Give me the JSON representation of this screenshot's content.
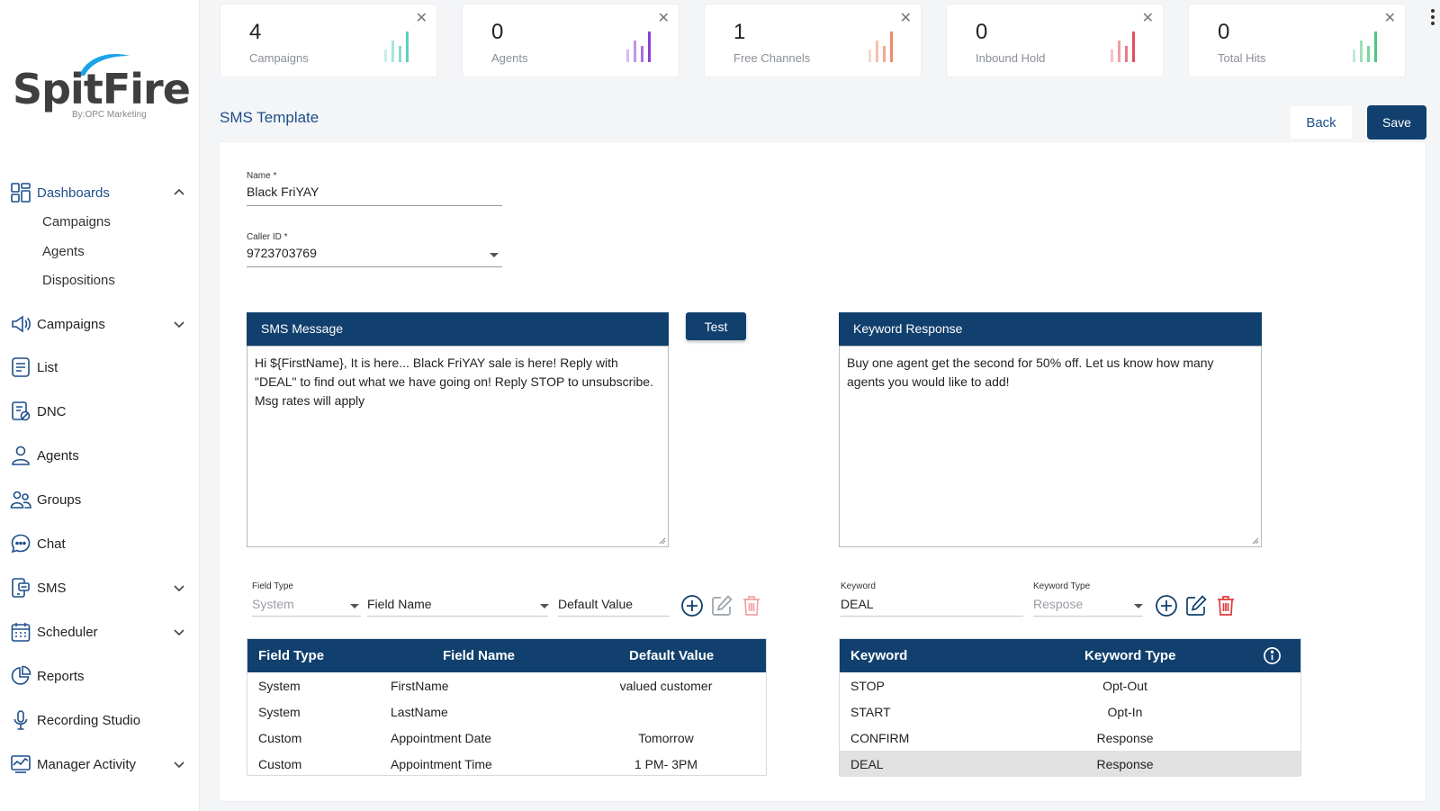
{
  "brand": {
    "name": "SpitFire",
    "tagline": "By:OPC Marketing"
  },
  "sidebar": {
    "dashboards": {
      "label": "Dashboards",
      "items": [
        "Campaigns",
        "Agents",
        "Dispositions"
      ]
    },
    "items": [
      {
        "key": "campaigns",
        "label": "Campaigns"
      },
      {
        "key": "list",
        "label": "List"
      },
      {
        "key": "dnc",
        "label": "DNC"
      },
      {
        "key": "agents",
        "label": "Agents"
      },
      {
        "key": "groups",
        "label": "Groups"
      },
      {
        "key": "chat",
        "label": "Chat"
      },
      {
        "key": "sms",
        "label": "SMS"
      },
      {
        "key": "scheduler",
        "label": "Scheduler"
      },
      {
        "key": "reports",
        "label": "Reports"
      },
      {
        "key": "recording",
        "label": "Recording Studio"
      },
      {
        "key": "manager",
        "label": "Manager Activity"
      }
    ]
  },
  "stats": [
    {
      "value": "4",
      "label": "Campaigns",
      "color": "#5ecfc3"
    },
    {
      "value": "0",
      "label": "Agents",
      "color": "#8b3fd9"
    },
    {
      "value": "1",
      "label": "Free Channels",
      "color": "#f08a6a"
    },
    {
      "value": "0",
      "label": "Inbound Hold",
      "color": "#e0505e"
    },
    {
      "value": "0",
      "label": "Total Hits",
      "color": "#4cc77f"
    }
  ],
  "page": {
    "title": "SMS Template",
    "back_label": "Back",
    "save_label": "Save"
  },
  "form": {
    "name_label": "Name *",
    "name_value": "Black FriYAY",
    "caller_label": "Caller ID *",
    "caller_value": "9723703769"
  },
  "sms": {
    "header": "SMS Message",
    "test_label": "Test",
    "message": "Hi  ${FirstName}, It is here... Black FriYAY sale is here! Reply with \"DEAL\" to find out what we have going on!  Reply STOP to unsubscribe.  Msg rates will apply"
  },
  "keyword_response": {
    "header": "Keyword Response",
    "message": "Buy one agent get the second for 50% off.  Let us know how many agents you would like to add!"
  },
  "field_inputs": {
    "type_label": "Field Type",
    "type_value": "System",
    "name_value": "Field Name",
    "default_value": "Default Value"
  },
  "keyword_inputs": {
    "keyword_label": "Keyword",
    "keyword_value": "DEAL",
    "type_label": "Keyword Type",
    "type_value": "Respose"
  },
  "fields_table": {
    "headers": [
      "Field Type",
      "Field Name",
      "Default Value"
    ],
    "rows": [
      [
        "System",
        "FirstName",
        "valued customer"
      ],
      [
        "System",
        "LastName",
        ""
      ],
      [
        "Custom",
        "Appointment Date",
        "Tomorrow"
      ],
      [
        "Custom",
        "Appointment Time",
        "1 PM- 3PM"
      ]
    ]
  },
  "keywords_table": {
    "headers": [
      "Keyword",
      "Keyword Type"
    ],
    "rows": [
      [
        "STOP",
        "Opt-Out"
      ],
      [
        "START",
        "Opt-In"
      ],
      [
        "CONFIRM",
        "Response"
      ],
      [
        "DEAL",
        "Response"
      ]
    ]
  },
  "colors": {
    "primary": "#11406e",
    "accent": "#1d4f8a"
  }
}
